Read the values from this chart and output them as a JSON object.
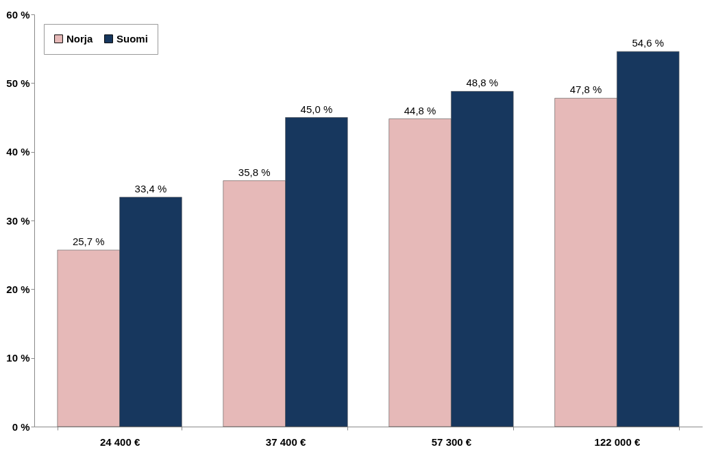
{
  "chart_data": {
    "type": "bar",
    "categories": [
      "24 400 €",
      "37 400 €",
      "57 300 €",
      "122 000 €"
    ],
    "series": [
      {
        "name": "Norja",
        "color": "#e6b9b8",
        "values": [
          25.7,
          35.8,
          44.8,
          47.8
        ],
        "value_labels": [
          "25,7 %",
          "35,8 %",
          "44,8 %",
          "47,8 %"
        ]
      },
      {
        "name": "Suomi",
        "color": "#17375e",
        "values": [
          33.4,
          45.0,
          48.8,
          54.6
        ],
        "value_labels": [
          "33,4 %",
          "45,0 %",
          "48,8 %",
          "54,6 %"
        ]
      }
    ],
    "ylim": [
      0,
      60
    ],
    "yticks": [
      {
        "value": 0,
        "label": "0 %"
      },
      {
        "value": 10,
        "label": "10 %"
      },
      {
        "value": 20,
        "label": "20 %"
      },
      {
        "value": 30,
        "label": "30 %"
      },
      {
        "value": 40,
        "label": "40 %"
      },
      {
        "value": 50,
        "label": "50 %"
      },
      {
        "value": 60,
        "label": "60 %"
      }
    ],
    "legend": "top left",
    "grid": false
  }
}
